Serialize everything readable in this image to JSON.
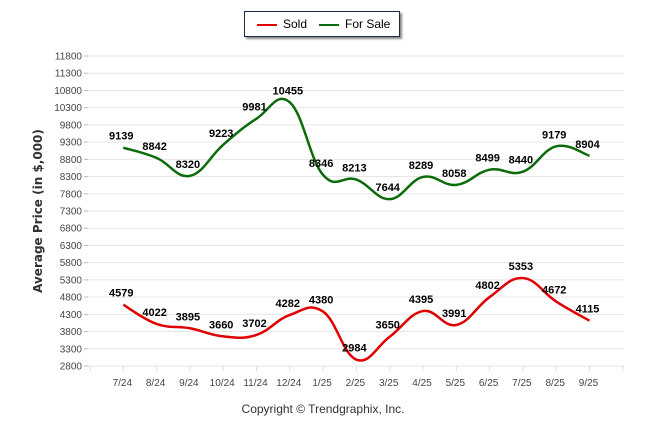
{
  "chart_data": {
    "type": "line",
    "title": "",
    "xlabel": "",
    "ylabel": "Average Price (in $,000)",
    "ylim": [
      2800,
      11800
    ],
    "yticks": [
      2800,
      3300,
      3800,
      4300,
      4800,
      5300,
      5800,
      6300,
      6800,
      7300,
      7800,
      8300,
      8800,
      9300,
      9800,
      10300,
      10800,
      11300,
      11800
    ],
    "categories": [
      "7/24",
      "8/24",
      "9/24",
      "10/24",
      "11/24",
      "12/24",
      "1/25",
      "2/25",
      "3/25",
      "4/25",
      "5/25",
      "6/25",
      "7/25",
      "8/25",
      "9/25"
    ],
    "grid": true,
    "legend_position": "top-center",
    "series": [
      {
        "name": "Sold",
        "color": "#e00000",
        "values": [
          4579,
          4022,
          3895,
          3660,
          3702,
          4282,
          4380,
          2984,
          3650,
          4395,
          3991,
          4802,
          5353,
          4672,
          4115
        ]
      },
      {
        "name": "For Sale",
        "color": "#0b6b0b",
        "values": [
          9139,
          8842,
          8320,
          9223,
          9981,
          10455,
          8346,
          8213,
          7644,
          8289,
          8058,
          8499,
          8440,
          9179,
          8904
        ]
      }
    ]
  },
  "legend": {
    "sold_label": "Sold",
    "for_sale_label": "For Sale"
  },
  "footer": {
    "copyright": "Copyright © Trendgraphix, Inc."
  }
}
